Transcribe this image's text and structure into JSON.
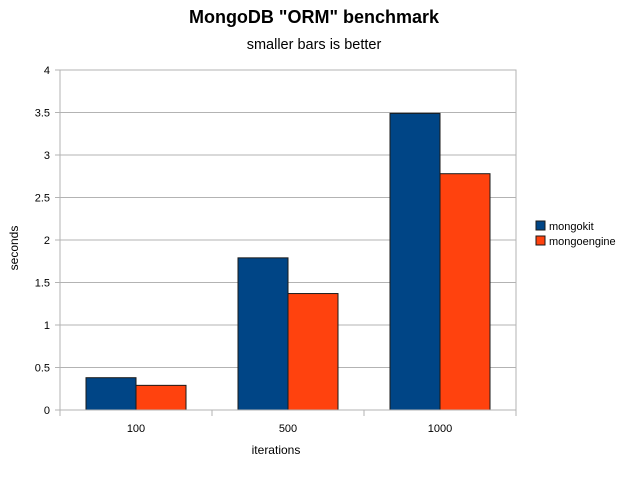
{
  "chart_data": {
    "type": "bar",
    "title": "MongoDB \"ORM\" benchmark",
    "subtitle": "smaller bars is better",
    "xlabel": "iterations",
    "ylabel": "seconds",
    "categories": [
      "100",
      "500",
      "1000"
    ],
    "series": [
      {
        "name": "mongokit",
        "color": "#004586",
        "values": [
          0.38,
          1.79,
          3.49
        ]
      },
      {
        "name": "mongoengine",
        "color": "#ff420e",
        "values": [
          0.29,
          1.37,
          2.78
        ]
      }
    ],
    "ylim": [
      0,
      4
    ],
    "yticks": [
      "0",
      "0.5",
      "1",
      "1.5",
      "2",
      "2.5",
      "3",
      "3.5",
      "4"
    ],
    "grid": true,
    "legend": "right"
  }
}
